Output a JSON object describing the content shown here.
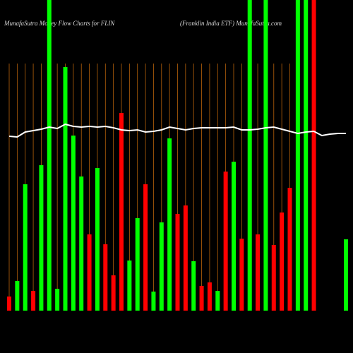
{
  "chart_data": {
    "type": "bar",
    "title": "MunafaSutra  Money Flow  Charts for FLIN",
    "subtitle": "(Franklin  India  ETF) MunafaSutra.com",
    "categories": [
      null,
      null,
      null,
      null,
      null,
      null,
      null,
      null,
      null,
      null,
      null,
      null,
      null,
      null,
      null,
      null,
      null,
      null,
      null,
      null,
      null,
      null,
      null,
      null,
      null,
      null,
      null,
      null,
      null,
      null,
      null,
      null,
      null,
      null,
      null,
      null,
      null,
      null,
      null,
      null,
      null,
      null,
      null
    ],
    "values": [
      20,
      42,
      179,
      28,
      206,
      440,
      31,
      345,
      248,
      190,
      108,
      202,
      94,
      50,
      280,
      71,
      131,
      179,
      27,
      125,
      244,
      137,
      149,
      70,
      35,
      40,
      28,
      197,
      211,
      102,
      440,
      108,
      440,
      93,
      139,
      174,
      440,
      440,
      440,
      null,
      null,
      null,
      101
    ],
    "colors": [
      "#ff0000",
      "#00ff00",
      "#00ff00",
      "#ff0000",
      "#00ff00",
      "#00ff00",
      "#00ff00",
      "#00ff00",
      "#00ff00",
      "#00ff00",
      "#ff0000",
      "#00ff00",
      "#ff0000",
      "#ff0000",
      "#ff0000",
      "#00ff00",
      "#00ff00",
      "#ff0000",
      "#00ff00",
      "#00ff00",
      "#00ff00",
      "#ff0000",
      "#ff0000",
      "#00ff00",
      "#ff0000",
      "#ff0000",
      "#00ff00",
      "#ff0000",
      "#00ff00",
      "#ff0000",
      "#00ff00",
      "#ff0000",
      "#00ff00",
      "#ff0000",
      "#ff0000",
      "#ff0000",
      "#00ff00",
      "#00ff00",
      "#ff0000",
      null,
      null,
      null,
      "#00ff00"
    ],
    "line": {
      "color": "#ffffff",
      "values": [
        247,
        246,
        253,
        255,
        257,
        260,
        258,
        264,
        261,
        260,
        261,
        260,
        261,
        259,
        256,
        255,
        256,
        253,
        254,
        256,
        260,
        258,
        256,
        258,
        259,
        259,
        259,
        259,
        260,
        256,
        256,
        257,
        259,
        260,
        257,
        254,
        251,
        253,
        254,
        248,
        250,
        251,
        251
      ]
    },
    "ylim": [
      0,
      440
    ],
    "grid": true,
    "grid_color": "#b8620a"
  }
}
